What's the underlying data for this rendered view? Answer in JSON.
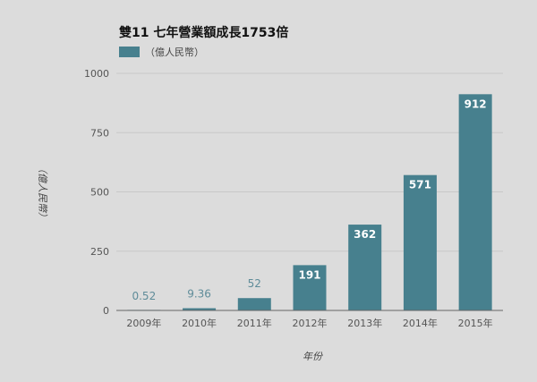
{
  "chart_data": {
    "type": "bar",
    "title": "雙11 七年營業額成長1753倍",
    "legend": {
      "position": "top-left",
      "entries": [
        "（億人民幣）"
      ]
    },
    "categories": [
      "2009年",
      "2010年",
      "2011年",
      "2012年",
      "2013年",
      "2014年",
      "2015年"
    ],
    "series": [
      {
        "name": "（億人民幣）",
        "values": [
          0.52,
          9.36,
          52,
          191,
          362,
          571,
          912
        ],
        "labels": [
          "0.52",
          "9.36",
          "52",
          "191",
          "362",
          "571",
          "912"
        ]
      }
    ],
    "xlabel": "年份",
    "ylabel": "（億人民幣）",
    "ylim": [
      0,
      1000
    ],
    "yticks": [
      0,
      250,
      500,
      750,
      1000
    ],
    "ytick_labels": [
      "0",
      "250",
      "500",
      "750",
      "1000"
    ],
    "grid": true,
    "colors": {
      "bar": "#47808e",
      "label_outside": "#5f8c99",
      "gridline": "#c8c8c8",
      "axis": "#666666"
    }
  }
}
